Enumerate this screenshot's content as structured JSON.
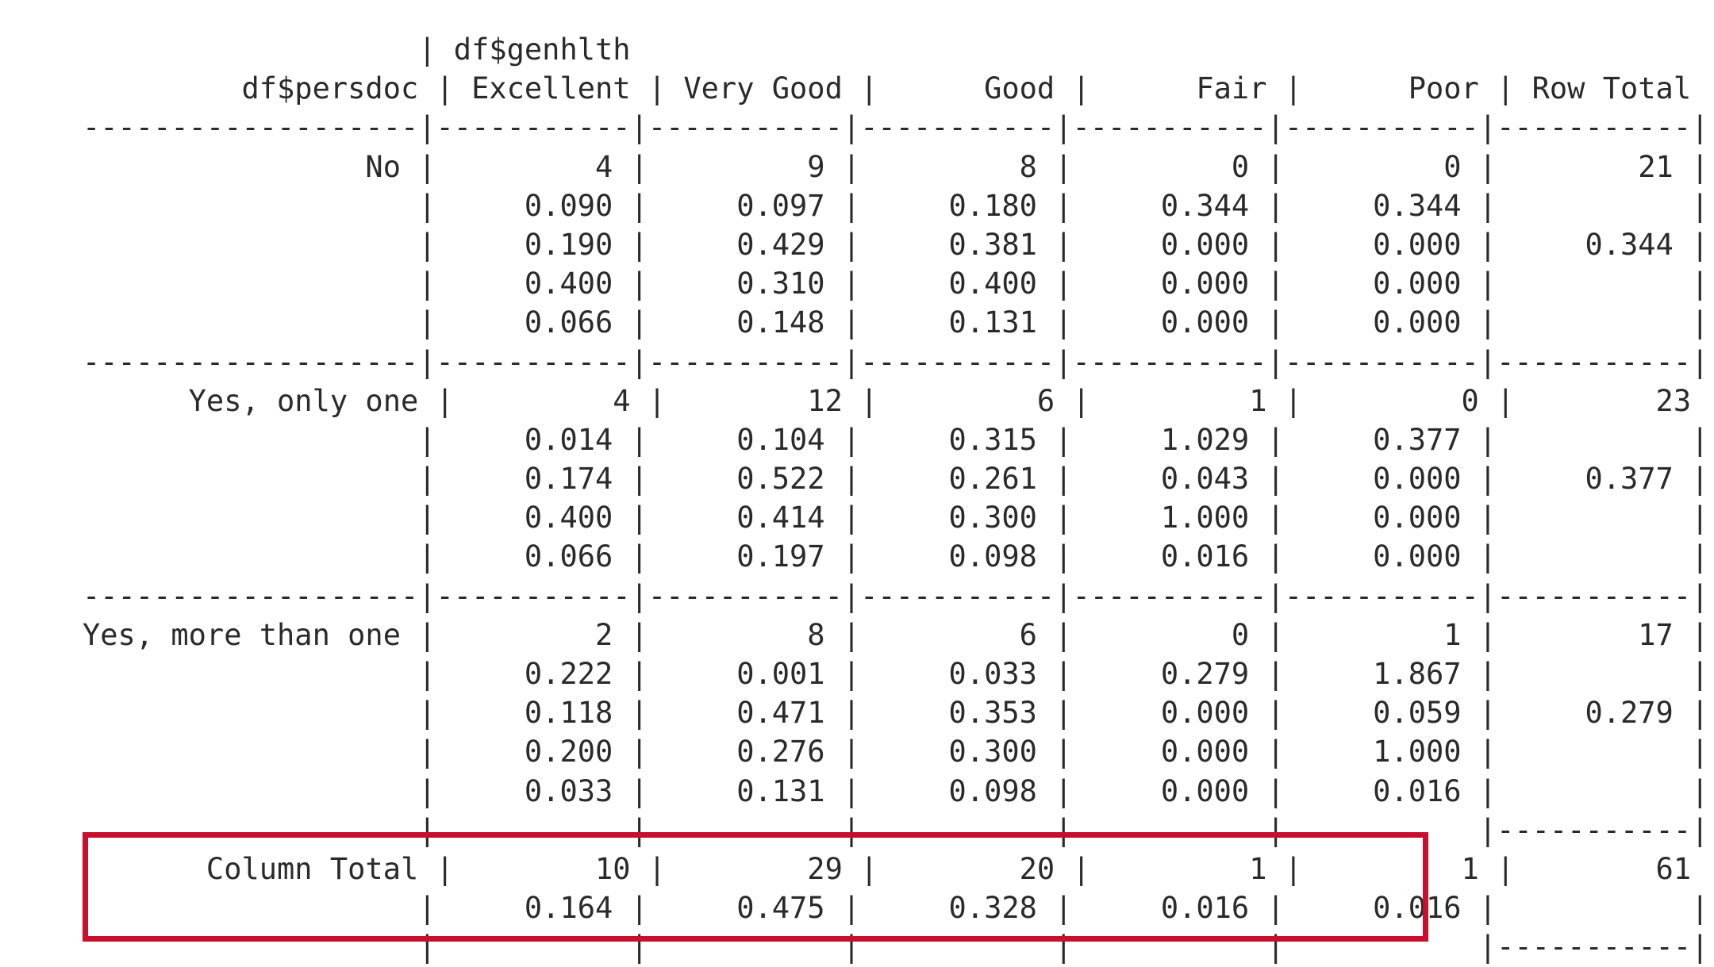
{
  "crosstab": {
    "lines": [
      "                   | df$genhlth ",
      "         df$persdoc | Excellent | Very Good |      Good |      Fair |      Poor | Row Total |",
      "-------------------|-----------|-----------|-----------|-----------|-----------|-----------|",
      "                No |         4 |         9 |         8 |         0 |         0 |        21 |",
      "                   |     0.090 |     0.097 |     0.180 |     0.344 |     0.344 |           |",
      "                   |     0.190 |     0.429 |     0.381 |     0.000 |     0.000 |     0.344 |",
      "                   |     0.400 |     0.310 |     0.400 |     0.000 |     0.000 |           |",
      "                   |     0.066 |     0.148 |     0.131 |     0.000 |     0.000 |           |",
      "-------------------|-----------|-----------|-----------|-----------|-----------|-----------|",
      "      Yes, only one |         4 |        12 |         6 |         1 |         0 |        23 |",
      "                   |     0.014 |     0.104 |     0.315 |     1.029 |     0.377 |           |",
      "                   |     0.174 |     0.522 |     0.261 |     0.043 |     0.000 |     0.377 |",
      "                   |     0.400 |     0.414 |     0.300 |     1.000 |     0.000 |           |",
      "                   |     0.066 |     0.197 |     0.098 |     0.016 |     0.000 |           |",
      "-------------------|-----------|-----------|-----------|-----------|-----------|-----------|",
      "Yes, more than one |         2 |         8 |         6 |         0 |         1 |        17 |",
      "                   |     0.222 |     0.001 |     0.033 |     0.279 |     1.867 |           |",
      "                   |     0.118 |     0.471 |     0.353 |     0.000 |     0.059 |     0.279 |",
      "                   |     0.200 |     0.276 |     0.300 |     0.000 |     1.000 |           |",
      "                   |     0.033 |     0.131 |     0.098 |     0.000 |     0.016 |           |",
      "                   |           |           |           |           |           |-----------|",
      "       Column Total |        10 |        29 |        20 |         1 |         1 |        61 |",
      "                   |     0.164 |     0.475 |     0.328 |     0.016 |     0.016 |           |",
      "                   |           |           |           |           |           |-----------|"
    ]
  },
  "highlight": {
    "color": "#c8102e"
  }
}
